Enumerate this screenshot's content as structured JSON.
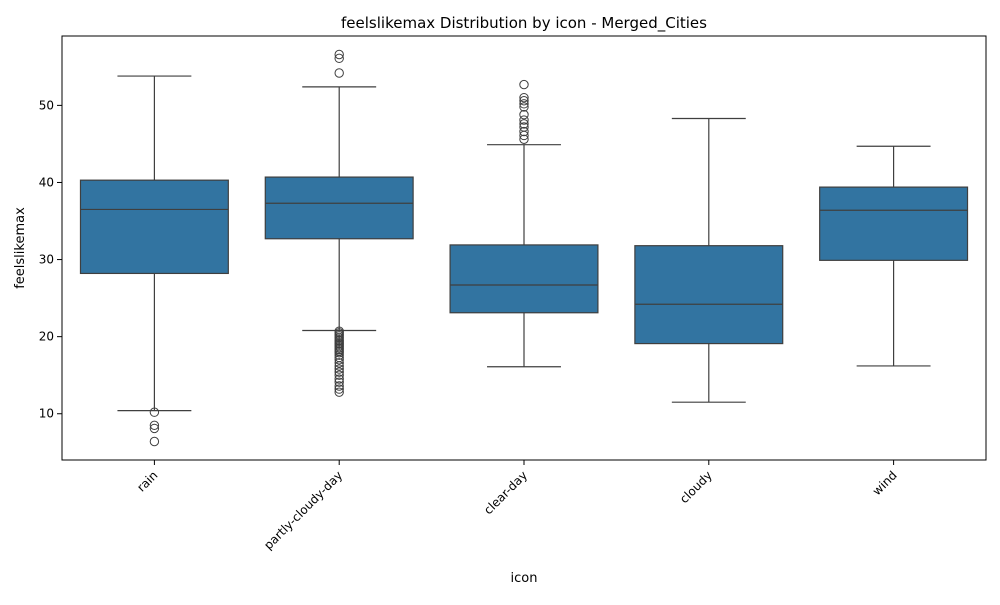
{
  "chart_data": {
    "type": "box",
    "title": "feelslikemax Distribution by icon - Merged_Cities",
    "xlabel": "icon",
    "ylabel": "feelslikemax",
    "ylim": [
      4,
      59
    ],
    "yticks": [
      10,
      20,
      30,
      40,
      50
    ],
    "categories": [
      "rain",
      "partly-cloudy-day",
      "clear-day",
      "cloudy",
      "wind"
    ],
    "box_color": "#3274a1",
    "boxes": [
      {
        "category": "rain",
        "whisker_low": 10.4,
        "q1": 28.2,
        "median": 36.5,
        "q3": 40.3,
        "whisker_high": 53.8,
        "outliers": [
          10.2,
          8.5,
          8.1,
          6.4
        ]
      },
      {
        "category": "partly-cloudy-day",
        "whisker_low": 20.8,
        "q1": 32.7,
        "median": 37.3,
        "q3": 40.7,
        "whisker_high": 52.4,
        "outliers": [
          56.6,
          56.1,
          54.2,
          20.7,
          20.5,
          20.3,
          20.1,
          19.9,
          19.7,
          19.5,
          19.3,
          19.1,
          18.9,
          18.7,
          18.5,
          18.3,
          18.1,
          17.9,
          17.6,
          17.3,
          17.0,
          16.6,
          16.2,
          15.8,
          15.4,
          15.0,
          14.5,
          14.1,
          13.6,
          13.2,
          12.8
        ]
      },
      {
        "category": "clear-day",
        "whisker_low": 16.1,
        "q1": 23.1,
        "median": 26.7,
        "q3": 31.9,
        "whisker_high": 44.9,
        "outliers": [
          52.7,
          51.0,
          50.6,
          50.2,
          49.8,
          48.8,
          48.1,
          47.6,
          47.2,
          46.6,
          46.1,
          45.6
        ]
      },
      {
        "category": "cloudy",
        "whisker_low": 11.5,
        "q1": 19.1,
        "median": 24.2,
        "q3": 31.8,
        "whisker_high": 48.3,
        "outliers": []
      },
      {
        "category": "wind",
        "whisker_low": 16.2,
        "q1": 29.9,
        "median": 36.4,
        "q3": 39.4,
        "whisker_high": 44.7,
        "outliers": []
      }
    ]
  }
}
